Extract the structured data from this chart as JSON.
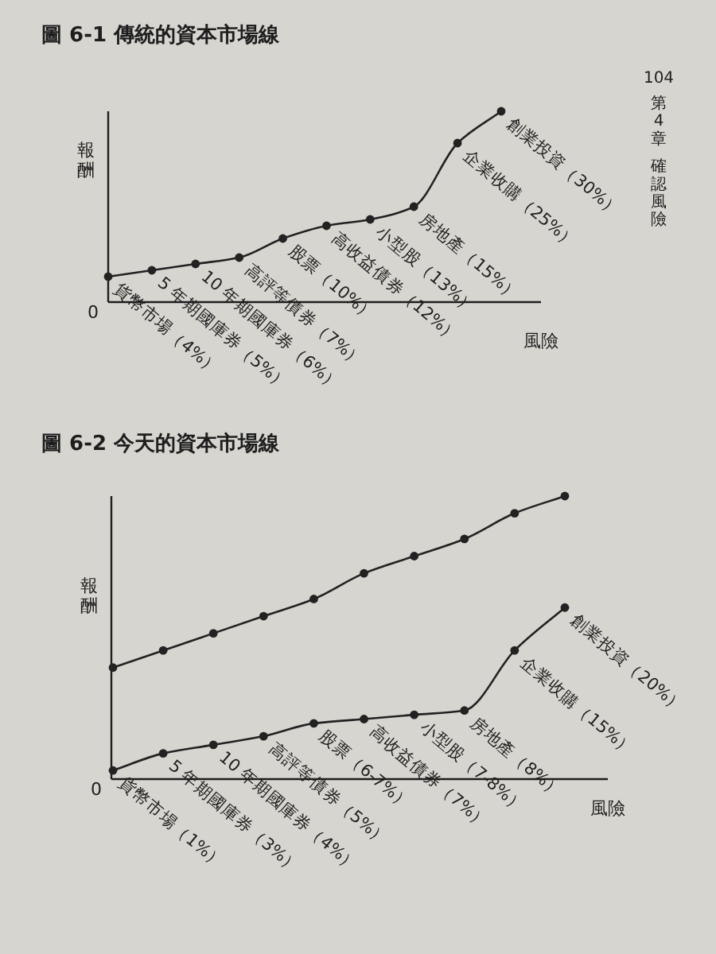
{
  "chart_data": [
    {
      "type": "line",
      "title": "圖 6-1 傳統的資本市場線",
      "xlabel": "風險",
      "ylabel": "報酬",
      "categories": [
        null,
        null,
        null,
        null,
        null,
        null,
        null,
        null,
        null,
        null
      ],
      "values": [
        4,
        5,
        6,
        7,
        10,
        12,
        13,
        15,
        25,
        30
      ],
      "value_labels": [
        "貨幣市場（4%）",
        "5 年期國庫券（5%）",
        "10 年期國庫券（6%）",
        "高評等債券（7%）",
        "股票（10%）",
        "高收益債券（12%）",
        "小型股（13%）",
        "房地產（15%）",
        "企業收購（25%）",
        "創業投資（30%）"
      ],
      "color": "#222222",
      "marker": "circle",
      "annotations": [
        "0",
        "104",
        "第4章",
        "確認風險"
      ]
    },
    {
      "type": "line",
      "title": "圖 6-2 今天的資本市場線",
      "xlabel": "風險",
      "ylabel": "報酬",
      "categories": [
        null,
        null,
        null,
        null,
        null,
        null,
        null,
        null,
        null,
        null
      ],
      "series": [
        {
          "color": "#222222",
          "values": [
            13,
            15,
            17,
            19,
            21,
            24,
            26,
            28,
            31,
            33
          ]
        },
        {
          "color": "#222222",
          "values": [
            1,
            3,
            4,
            5,
            6.5,
            7,
            7.5,
            8,
            15,
            20
          ],
          "value_labels": [
            "貨幣市場（1%）",
            "5 年期國庫券（3%）",
            "10 年期國庫券（4%）",
            "高評等債券（5%）",
            "股票（6-7%）",
            "高收益債券（7%）",
            "小型股（7-8%）",
            "房地產（8%）",
            "企業收購（15%）",
            "創業投資（20%）"
          ]
        }
      ],
      "marker": "circle",
      "annotations": [
        "0"
      ]
    }
  ]
}
